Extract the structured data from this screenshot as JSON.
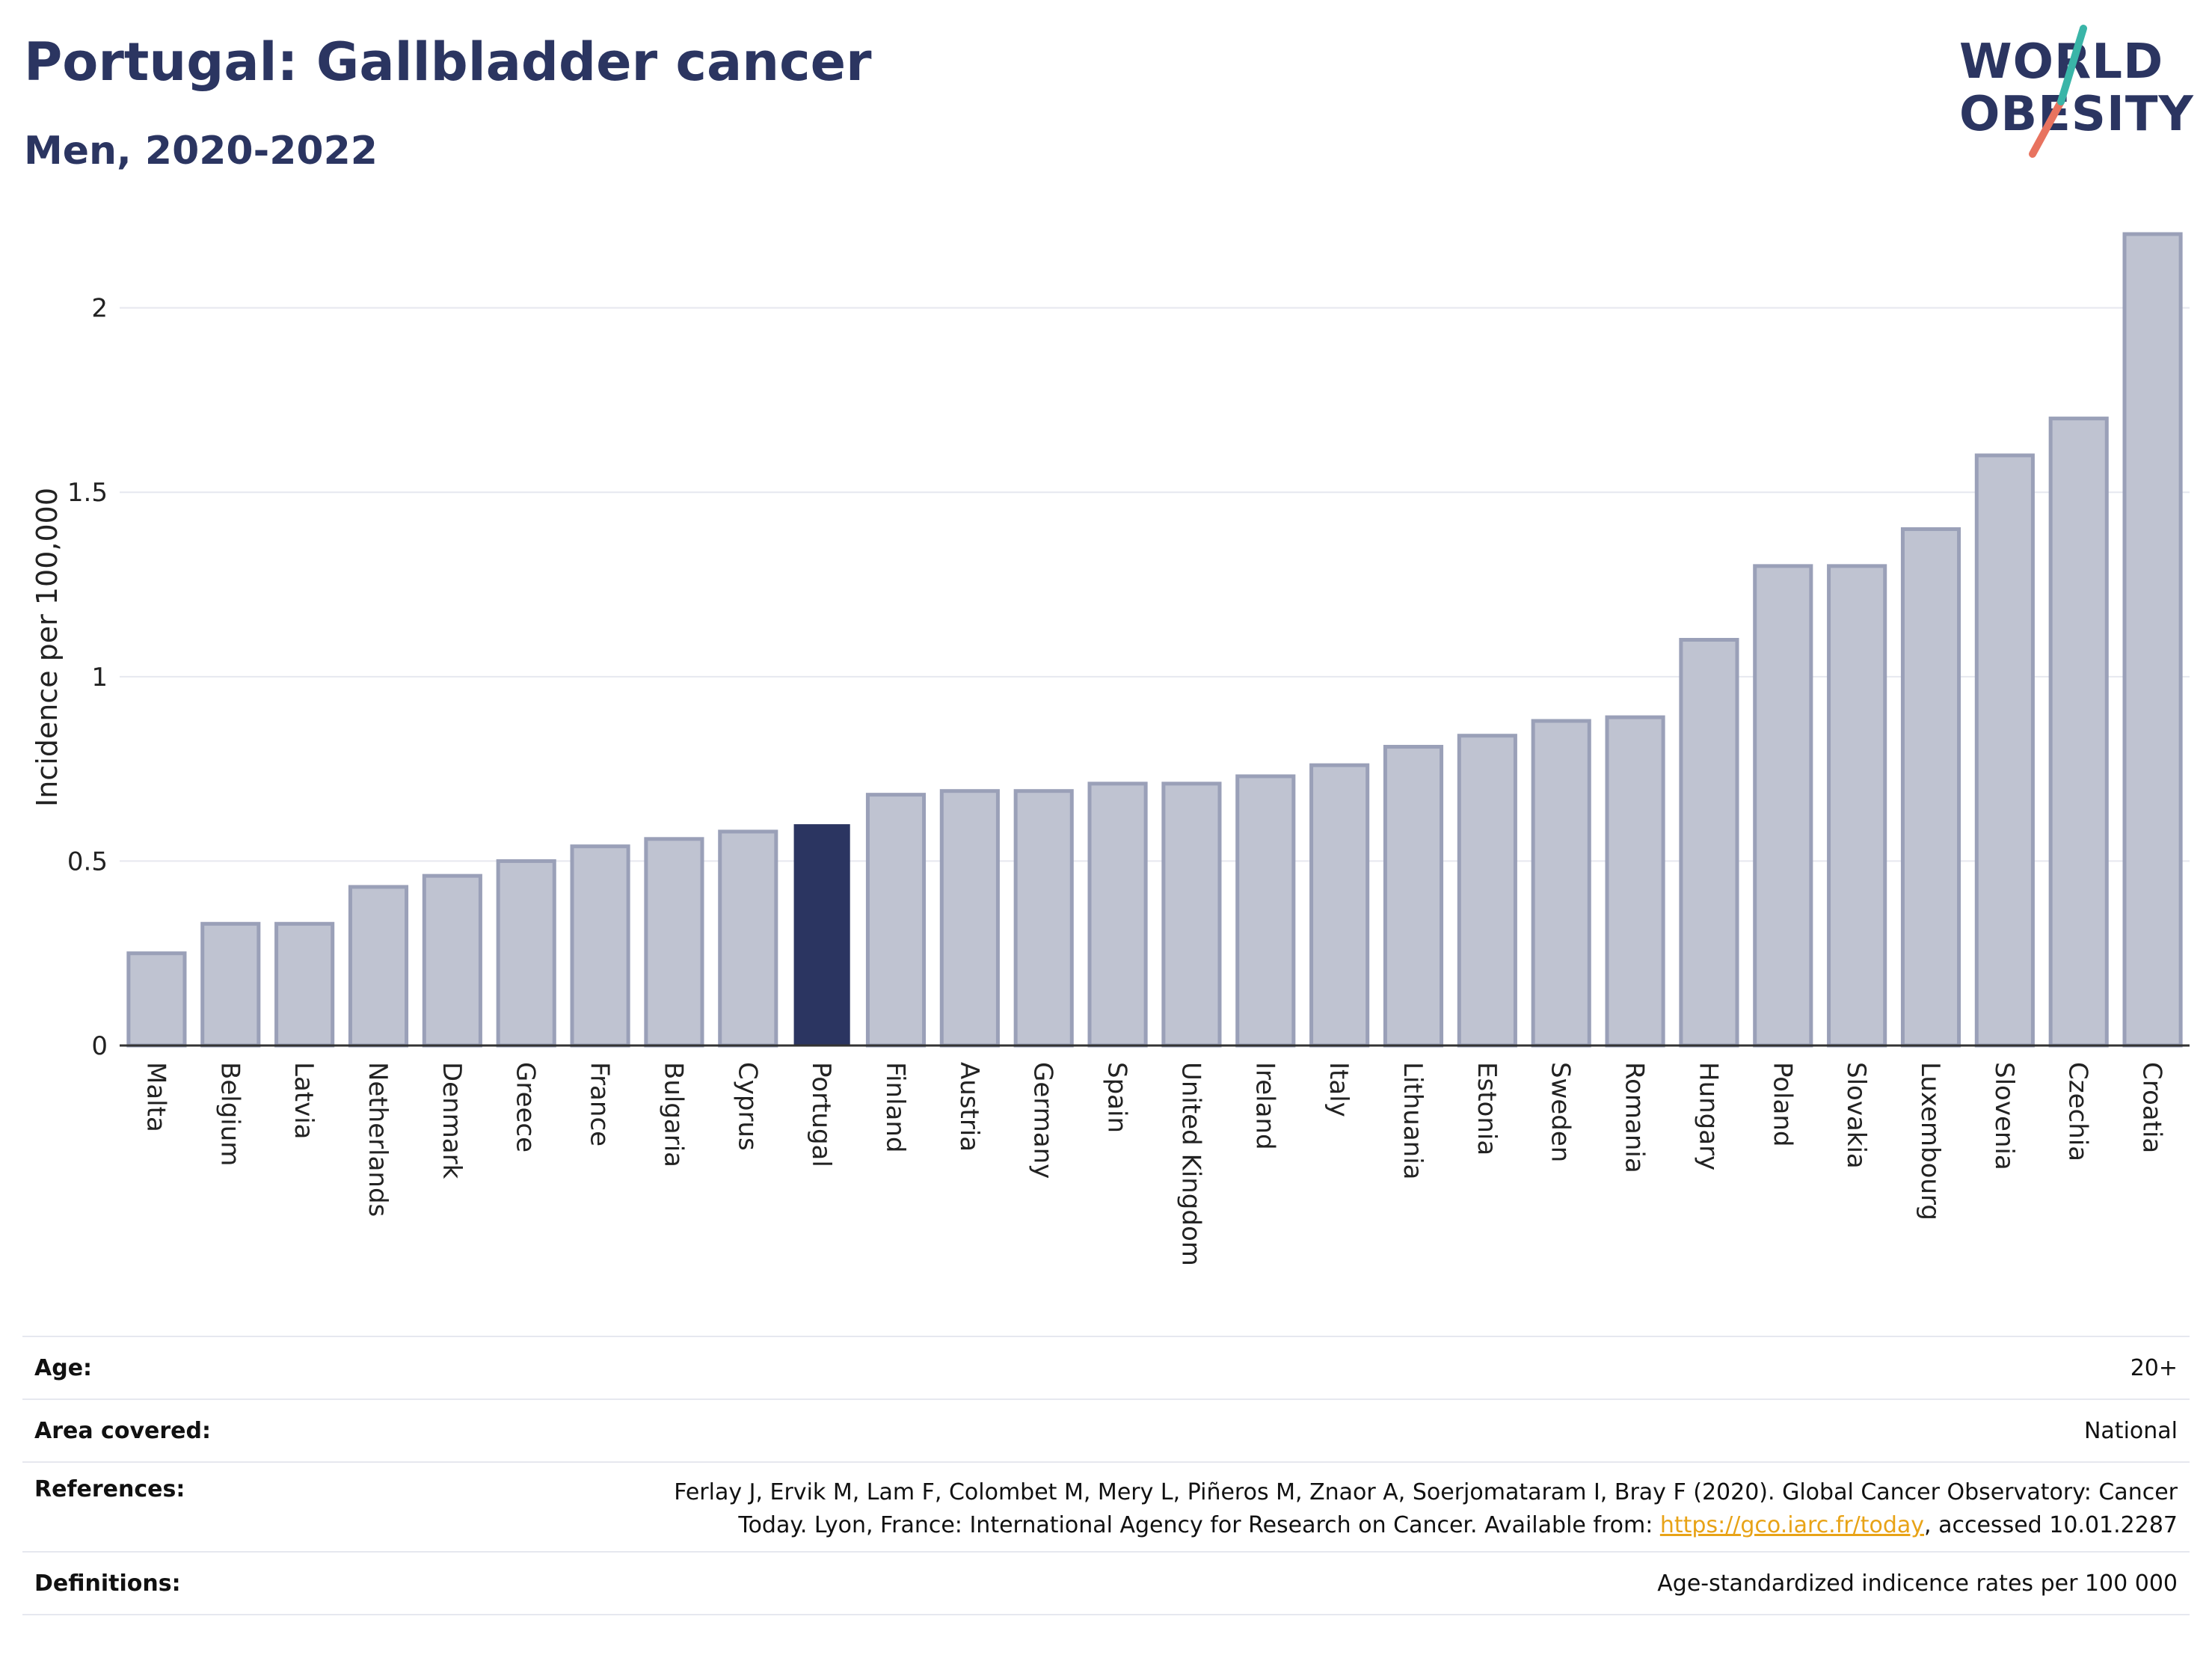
{
  "title": "Portugal: Gallbladder cancer",
  "subtitle": "Men, 2020-2022",
  "logo": {
    "line1": "WORLD",
    "line2": "OBESITY"
  },
  "colors": {
    "highlight": "#2b3561",
    "bar": "#bfc3d1",
    "bar_stroke": "#9aa0b8",
    "grid": "#e6e8ef",
    "axis": "#333333"
  },
  "chart_data": {
    "type": "bar",
    "ylabel": "Incidence per 100,000",
    "xlabel": "",
    "ylim": [
      0,
      2.2
    ],
    "yticks": [
      0,
      0.5,
      1,
      1.5,
      2
    ],
    "ytick_labels": [
      "0",
      "0.5",
      "1",
      "1.5",
      "2"
    ],
    "highlight": "Portugal",
    "categories": [
      "Malta",
      "Belgium",
      "Latvia",
      "Netherlands",
      "Denmark",
      "Greece",
      "France",
      "Bulgaria",
      "Cyprus",
      "Portugal",
      "Finland",
      "Austria",
      "Germany",
      "Spain",
      "United Kingdom",
      "Ireland",
      "Italy",
      "Lithuania",
      "Estonia",
      "Sweden",
      "Romania",
      "Hungary",
      "Poland",
      "Slovakia",
      "Luxembourg",
      "Slovenia",
      "Czechia",
      "Croatia"
    ],
    "values": [
      0.25,
      0.33,
      0.33,
      0.43,
      0.46,
      0.5,
      0.54,
      0.56,
      0.58,
      0.6,
      0.68,
      0.69,
      0.69,
      0.71,
      0.71,
      0.73,
      0.76,
      0.81,
      0.84,
      0.88,
      0.89,
      1.1,
      1.3,
      1.3,
      1.4,
      1.6,
      1.7,
      2.2
    ]
  },
  "info": {
    "age_label": "Age:",
    "age_value": "20+",
    "area_label": "Area covered:",
    "area_value": "National",
    "references_label": "References:",
    "references_line1": "Ferlay J, Ervik M, Lam F, Colombet M, Mery L, Piñeros M, Znaor A, Soerjomataram I, Bray F (2020). Global Cancer Observatory: Cancer",
    "references_line2_pre": "Today. Lyon, France: International Agency for Research on Cancer. Available from: ",
    "references_link": "https://gco.iarc.fr/today",
    "references_line2_post": ", accessed 10.01.2287",
    "definitions_label": "Definitions:",
    "definitions_value": "Age-standardized indicence rates per 100 000"
  }
}
